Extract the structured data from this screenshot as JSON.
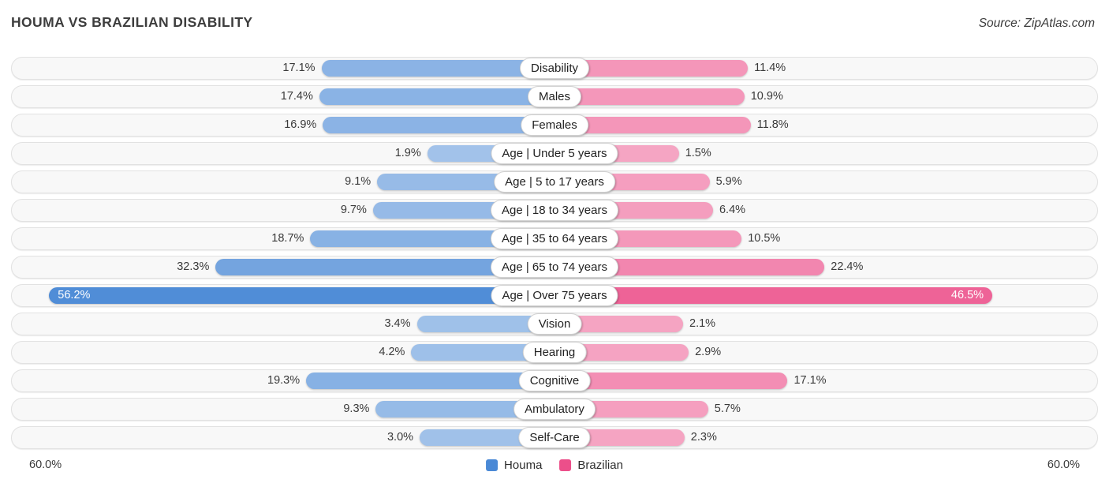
{
  "header": {
    "title": "HOUMA VS BRAZILIAN DISABILITY",
    "source": "Source: ZipAtlas.com"
  },
  "axis": {
    "left_max_label": "60.0%",
    "right_max_label": "60.0%",
    "max_percent": 60
  },
  "legend": [
    {
      "label": "Houma",
      "color": "#4a89d6"
    },
    {
      "label": "Brazilian",
      "color": "#ec4f8a"
    }
  ],
  "chart_data": {
    "type": "bar",
    "variant": "diverging-horizontal",
    "title": "HOUMA VS BRAZILIAN DISABILITY",
    "value_suffix": "%",
    "xlim": [
      0,
      60
    ],
    "categories": [
      "Disability",
      "Males",
      "Females",
      "Age | Under 5 years",
      "Age | 5 to 17 years",
      "Age | 18 to 34 years",
      "Age | 35 to 64 years",
      "Age | 65 to 74 years",
      "Age | Over 75 years",
      "Vision",
      "Hearing",
      "Cognitive",
      "Ambulatory",
      "Self-Care"
    ],
    "series": [
      {
        "name": "Houma",
        "side": "left",
        "color": "#4a89d6",
        "values": [
          17.1,
          17.4,
          16.9,
          1.9,
          9.1,
          9.7,
          18.7,
          32.3,
          56.2,
          3.4,
          4.2,
          19.3,
          9.3,
          3.0
        ]
      },
      {
        "name": "Brazilian",
        "side": "right",
        "color": "#ec4f8a",
        "values": [
          11.4,
          10.9,
          11.8,
          1.5,
          5.9,
          6.4,
          10.5,
          22.4,
          46.5,
          2.1,
          2.9,
          17.1,
          5.7,
          2.3
        ]
      }
    ]
  }
}
